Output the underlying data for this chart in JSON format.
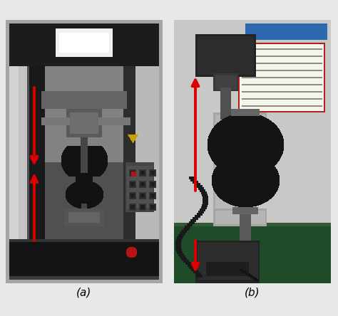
{
  "fig_width": 4.74,
  "fig_height": 4.44,
  "dpi": 100,
  "background_color": "#e8e8e8",
  "label_fontsize": 11,
  "panel_a_label": "(a)",
  "panel_b_label": "(b)",
  "arrow_color": "#dd0000",
  "arrow_lw": 2.8,
  "arrow_mutation_scale": 16,
  "border_color": "#888888",
  "border_lw": 1.0
}
